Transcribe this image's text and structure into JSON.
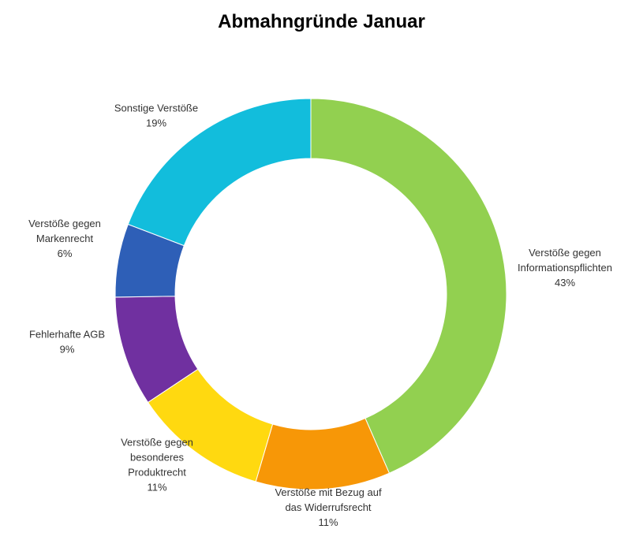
{
  "chart_data": {
    "type": "pie",
    "variant": "donut",
    "title": "Abmahngründe Januar",
    "legend": "none",
    "slices": [
      {
        "label_lines": [
          "Verstöße gegen",
          "Informationspflichten"
        ],
        "value": 43,
        "value_label": "43%",
        "color": "#92d050"
      },
      {
        "label_lines": [
          "Verstöße mit Bezug auf",
          "das Widerrufsrecht"
        ],
        "value": 11,
        "value_label": "11%",
        "color": "#f79707"
      },
      {
        "label_lines": [
          "Verstöße gegen",
          "besonderes",
          "Produktrecht"
        ],
        "value": 11,
        "value_label": "11%",
        "color": "#ffd910"
      },
      {
        "label_lines": [
          "Fehlerhafte AGB"
        ],
        "value": 9,
        "value_label": "9%",
        "color": "#7030a0"
      },
      {
        "label_lines": [
          "Verstöße gegen",
          "Markenrecht"
        ],
        "value": 6,
        "value_label": "6%",
        "color": "#2e5fb7"
      },
      {
        "label_lines": [
          "Sonstige Verstöße"
        ],
        "value": 19,
        "value_label": "19%",
        "color": "#12bddc"
      }
    ]
  }
}
